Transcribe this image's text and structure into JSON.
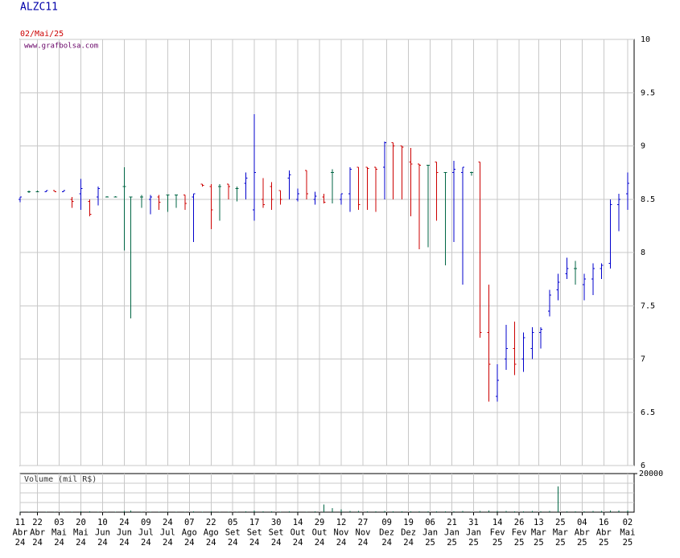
{
  "chart_data": {
    "type": "ohlc",
    "title": "ALZC11",
    "date": "02/Mai/25",
    "source": "www.grafbolsa.com",
    "up_color": "#0000cc",
    "down_color": "#cc0000",
    "flat_color": "#006644",
    "xlim": [
      0,
      283
    ],
    "ylim": [
      6,
      10
    ],
    "yticks": [
      6,
      6.5,
      7,
      7.5,
      8,
      8.5,
      9,
      9.5,
      10
    ],
    "grid": true,
    "xticks": [
      {
        "value": 0,
        "day": "11",
        "month": "Abr",
        "year": "24"
      },
      {
        "value": 8,
        "day": "22",
        "month": "Abr",
        "year": "24"
      },
      {
        "value": 18,
        "day": "03",
        "month": "Mai",
        "year": "24"
      },
      {
        "value": 28,
        "day": "20",
        "month": "Mai",
        "year": "24"
      },
      {
        "value": 38,
        "day": "10",
        "month": "Jun",
        "year": "24"
      },
      {
        "value": 48,
        "day": "24",
        "month": "Jun",
        "year": "24"
      },
      {
        "value": 58,
        "day": "09",
        "month": "Jul",
        "year": "24"
      },
      {
        "value": 68,
        "day": "24",
        "month": "Jul",
        "year": "24"
      },
      {
        "value": 78,
        "day": "07",
        "month": "Ago",
        "year": "24"
      },
      {
        "value": 88,
        "day": "22",
        "month": "Ago",
        "year": "24"
      },
      {
        "value": 98,
        "day": "05",
        "month": "Set",
        "year": "24"
      },
      {
        "value": 108,
        "day": "17",
        "month": "Set",
        "year": "24"
      },
      {
        "value": 118,
        "day": "30",
        "month": "Set",
        "year": "24"
      },
      {
        "value": 128,
        "day": "14",
        "month": "Out",
        "year": "24"
      },
      {
        "value": 138,
        "day": "29",
        "month": "Out",
        "year": "24"
      },
      {
        "value": 148,
        "day": "12",
        "month": "Nov",
        "year": "24"
      },
      {
        "value": 158,
        "day": "27",
        "month": "Nov",
        "year": "24"
      },
      {
        "value": 169,
        "day": "09",
        "month": "Dez",
        "year": "24"
      },
      {
        "value": 179,
        "day": "19",
        "month": "Dez",
        "year": "24"
      },
      {
        "value": 189,
        "day": "06",
        "month": "Jan",
        "year": "25"
      },
      {
        "value": 199,
        "day": "21",
        "month": "Jan",
        "year": "25"
      },
      {
        "value": 209,
        "day": "31",
        "month": "Jan",
        "year": "25"
      },
      {
        "value": 220,
        "day": "14",
        "month": "Fev",
        "year": "25"
      },
      {
        "value": 230,
        "day": "26",
        "month": "Fev",
        "year": "25"
      },
      {
        "value": 239,
        "day": "13",
        "month": "Mar",
        "year": "25"
      },
      {
        "value": 249,
        "day": "25",
        "month": "Mar",
        "year": "25"
      },
      {
        "value": 259,
        "day": "04",
        "month": "Abr",
        "year": "25"
      },
      {
        "value": 269,
        "day": "16",
        "month": "Abr",
        "year": "25"
      },
      {
        "value": 280,
        "day": "02",
        "month": "Mai",
        "year": "25"
      }
    ],
    "bars": {
      "x": [
        0,
        4,
        8,
        12,
        16,
        20,
        24,
        28,
        32,
        36,
        40,
        44,
        48,
        51,
        56,
        60,
        64,
        68,
        72,
        76,
        80,
        84,
        88,
        92,
        96,
        100,
        104,
        108,
        112,
        116,
        120,
        124,
        128,
        132,
        136,
        140,
        144,
        148,
        152,
        156,
        160,
        164,
        168,
        172,
        176,
        180,
        184,
        188,
        192,
        196,
        200,
        204,
        208,
        212,
        216,
        220,
        224,
        228,
        232,
        236,
        240,
        244,
        248,
        252,
        256,
        260,
        264,
        268,
        272,
        276,
        280
      ],
      "open": [
        8.5,
        8.57,
        8.57,
        8.57,
        8.58,
        8.57,
        8.5,
        8.55,
        8.48,
        8.52,
        8.52,
        8.52,
        8.62,
        8.52,
        8.52,
        8.5,
        8.52,
        8.54,
        8.54,
        8.54,
        8.52,
        8.64,
        8.62,
        8.62,
        8.64,
        8.6,
        8.65,
        8.4,
        8.5,
        8.62,
        8.58,
        8.7,
        8.5,
        8.77,
        8.5,
        8.52,
        8.75,
        8.5,
        8.55,
        8.8,
        8.8,
        8.8,
        8.8,
        9.03,
        9,
        8.85,
        8.83,
        8.82,
        8.85,
        8.75,
        8.75,
        8.75,
        8.75,
        8.85,
        7.25,
        6.65,
        7,
        7.1,
        7,
        7.1,
        7.25,
        7.45,
        7.65,
        7.8,
        7.85,
        7.7,
        7.75,
        7.85,
        7.9,
        8.45,
        8.55
      ],
      "high": [
        8.52,
        8.58,
        8.58,
        8.58,
        8.58,
        8.58,
        8.52,
        8.69,
        8.5,
        8.62,
        8.53,
        8.53,
        8.8,
        8.52,
        8.54,
        8.54,
        8.54,
        8.54,
        8.54,
        8.54,
        8.55,
        8.64,
        8.64,
        8.64,
        8.64,
        8.62,
        8.75,
        9.3,
        8.7,
        8.66,
        8.58,
        8.77,
        8.6,
        8.77,
        8.57,
        8.55,
        8.78,
        8.55,
        8.8,
        8.8,
        8.8,
        8.8,
        9.04,
        9.03,
        9,
        8.98,
        8.83,
        8.82,
        8.85,
        8.75,
        8.86,
        8.8,
        8.76,
        8.85,
        7.7,
        6.95,
        7.32,
        7.35,
        7.25,
        7.3,
        7.3,
        7.65,
        7.8,
        7.95,
        7.92,
        7.8,
        7.9,
        7.9,
        8.5,
        8.55,
        8.75
      ],
      "low": [
        8.47,
        8.56,
        8.57,
        8.57,
        8.57,
        8.57,
        8.42,
        8.4,
        8.34,
        8.44,
        8.52,
        8.52,
        8.02,
        7.38,
        8.42,
        8.36,
        8.4,
        8.38,
        8.42,
        8.4,
        8.1,
        8.62,
        8.22,
        8.3,
        8.5,
        8.48,
        8.5,
        8.3,
        8.42,
        8.4,
        8.45,
        8.5,
        8.48,
        8.5,
        8.45,
        8.46,
        8.46,
        8.45,
        8.38,
        8.4,
        8.4,
        8.38,
        8.5,
        8.5,
        8.5,
        8.34,
        8.03,
        8.05,
        8.3,
        7.88,
        8.1,
        7.7,
        8.72,
        7.2,
        6.6,
        6.6,
        6.9,
        6.85,
        6.88,
        7,
        7.1,
        7.4,
        7.55,
        7.75,
        7.7,
        7.55,
        7.6,
        7.75,
        7.85,
        8.2,
        8.4
      ],
      "close": [
        8.52,
        8.57,
        8.57,
        8.58,
        8.57,
        8.58,
        8.48,
        8.6,
        8.36,
        8.6,
        8.52,
        8.52,
        8.62,
        8.52,
        8.52,
        8.52,
        8.47,
        8.54,
        8.54,
        8.46,
        8.55,
        8.63,
        8.4,
        8.62,
        8.62,
        8.6,
        8.7,
        8.75,
        8.45,
        8.5,
        8.5,
        8.73,
        8.55,
        8.55,
        8.53,
        8.47,
        8.75,
        8.55,
        8.78,
        8.45,
        8.79,
        8.78,
        9.03,
        9,
        8.99,
        8.83,
        8.82,
        8.82,
        8.75,
        8.75,
        8.78,
        8.8,
        8.75,
        7.25,
        6.95,
        6.8,
        7.1,
        6.95,
        7.2,
        7.25,
        7.28,
        7.6,
        7.72,
        7.85,
        7.85,
        7.75,
        7.85,
        7.88,
        8.45,
        8.5,
        8.65
      ],
      "volume": [
        300,
        200,
        300,
        200,
        300,
        200,
        300,
        500,
        400,
        300,
        200,
        200,
        600,
        800,
        300,
        300,
        300,
        300,
        200,
        300,
        400,
        300,
        400,
        300,
        300,
        300,
        400,
        900,
        500,
        400,
        300,
        400,
        300,
        300,
        400,
        4000,
        2000,
        1500,
        600,
        600,
        500,
        500,
        700,
        500,
        400,
        500,
        500,
        400,
        400,
        400,
        400,
        600,
        300,
        700,
        900,
        700,
        600,
        500,
        500,
        600,
        500,
        600,
        13300,
        500,
        500,
        500,
        600,
        700,
        800,
        800,
        900
      ]
    },
    "volume_label": "Volume (mil R$)",
    "volume_ylim": [
      0,
      20000
    ],
    "volume_yticks": [
      20000
    ]
  }
}
